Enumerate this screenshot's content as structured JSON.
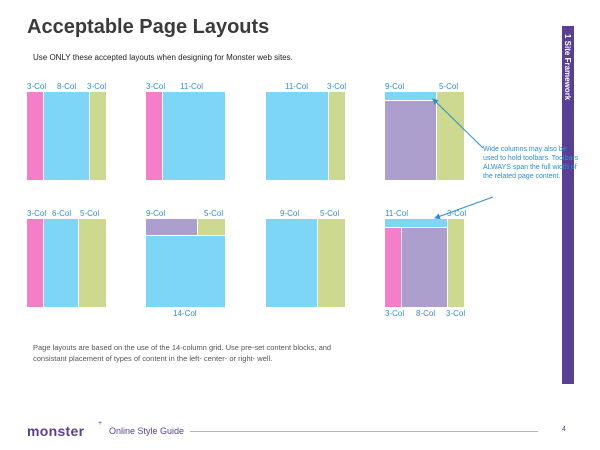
{
  "page": {
    "title": "Acceptable Page Layouts",
    "subtitle": "Use ONLY these accepted layouts when designing for Monster web sites.",
    "side_tab": "1 Site Framework",
    "note": "Wide columns may also be used to hold toolbars. Toolbars ALWAYS span the full width of the related page content.",
    "body_text": "Page layouts are based on the use of the 14-column grid. Use pre-set content blocks, and consistant placement of types of content in the left- center- or right- well.",
    "logo": "monster",
    "logo_mark": "+",
    "footer_title": "Online Style Guide",
    "page_number": "4"
  },
  "colors": {
    "pink": "#f47fc8",
    "blue": "#7dd6f6",
    "green": "#cdd98e",
    "purple": "#ad9fcd",
    "label": "#2d8fd0",
    "brand": "#5a3f97"
  },
  "layouts": {
    "l1": {
      "labels": [
        "3-Col",
        "8-Col",
        "3-Col"
      ]
    },
    "l2": {
      "labels": [
        "3-Col",
        "11-Col"
      ]
    },
    "l3": {
      "labels": [
        "11-Col",
        "3-Col"
      ]
    },
    "l4": {
      "labels": [
        "9-Col",
        "5-Col"
      ]
    },
    "l5": {
      "labels": [
        "3-Col",
        "6-Col",
        "5-Col"
      ]
    },
    "l6": {
      "labels": [
        "9-Col",
        "5-Col",
        "14-Col"
      ]
    },
    "l7": {
      "labels": [
        "9-Col",
        "5-Col"
      ]
    },
    "l8": {
      "labels": [
        "11-Col",
        "3-Col",
        "3-Col",
        "8-Col",
        "3-Col"
      ]
    }
  }
}
